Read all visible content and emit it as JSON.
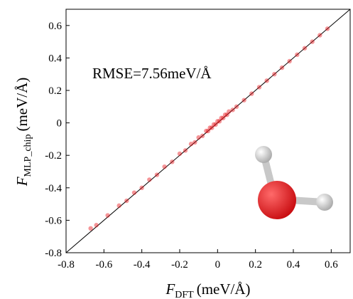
{
  "chart_data": {
    "type": "scatter",
    "annotation": "RMSE=7.56meV/Å",
    "x_label": {
      "symbol": "F",
      "subscript": "DFT",
      "unit": "(meV/Å)"
    },
    "y_label": {
      "symbol": "F",
      "subscript": "MLP_chip",
      "unit": "(meV/Å)"
    },
    "xlim": [
      -0.8,
      0.7
    ],
    "ylim": [
      -0.8,
      0.7
    ],
    "xticks": [
      -0.8,
      -0.6,
      -0.4,
      -0.2,
      0,
      0.2,
      0.4,
      0.6
    ],
    "yticks": [
      -0.8,
      -0.6,
      -0.4,
      -0.2,
      0,
      0.2,
      0.4,
      0.6
    ],
    "x": [
      -0.67,
      -0.64,
      -0.58,
      -0.52,
      -0.48,
      -0.44,
      -0.4,
      -0.36,
      -0.32,
      -0.28,
      -0.24,
      -0.2,
      -0.17,
      -0.14,
      -0.12,
      -0.1,
      -0.08,
      -0.06,
      -0.05,
      -0.04,
      -0.03,
      -0.02,
      -0.01,
      0,
      0.01,
      0.02,
      0.03,
      0.04,
      0.05,
      0.06,
      0.08,
      0.1,
      0.14,
      0.18,
      0.22,
      0.26,
      0.3,
      0.34,
      0.38,
      0.42,
      0.46,
      0.5,
      0.54,
      0.58
    ],
    "series": [
      {
        "color": "#e8141a",
        "values": [
          -0.65,
          -0.63,
          -0.57,
          -0.51,
          -0.48,
          -0.43,
          -0.4,
          -0.35,
          -0.32,
          -0.27,
          -0.24,
          -0.19,
          -0.17,
          -0.13,
          -0.12,
          -0.09,
          -0.08,
          -0.05,
          -0.05,
          -0.03,
          -0.03,
          -0.01,
          -0.01,
          0.01,
          0.01,
          0.03,
          0.03,
          0.05,
          0.05,
          0.07,
          0.08,
          0.1,
          0.14,
          0.18,
          0.22,
          0.26,
          0.3,
          0.34,
          0.38,
          0.42,
          0.46,
          0.5,
          0.54,
          0.58
        ]
      }
    ]
  }
}
